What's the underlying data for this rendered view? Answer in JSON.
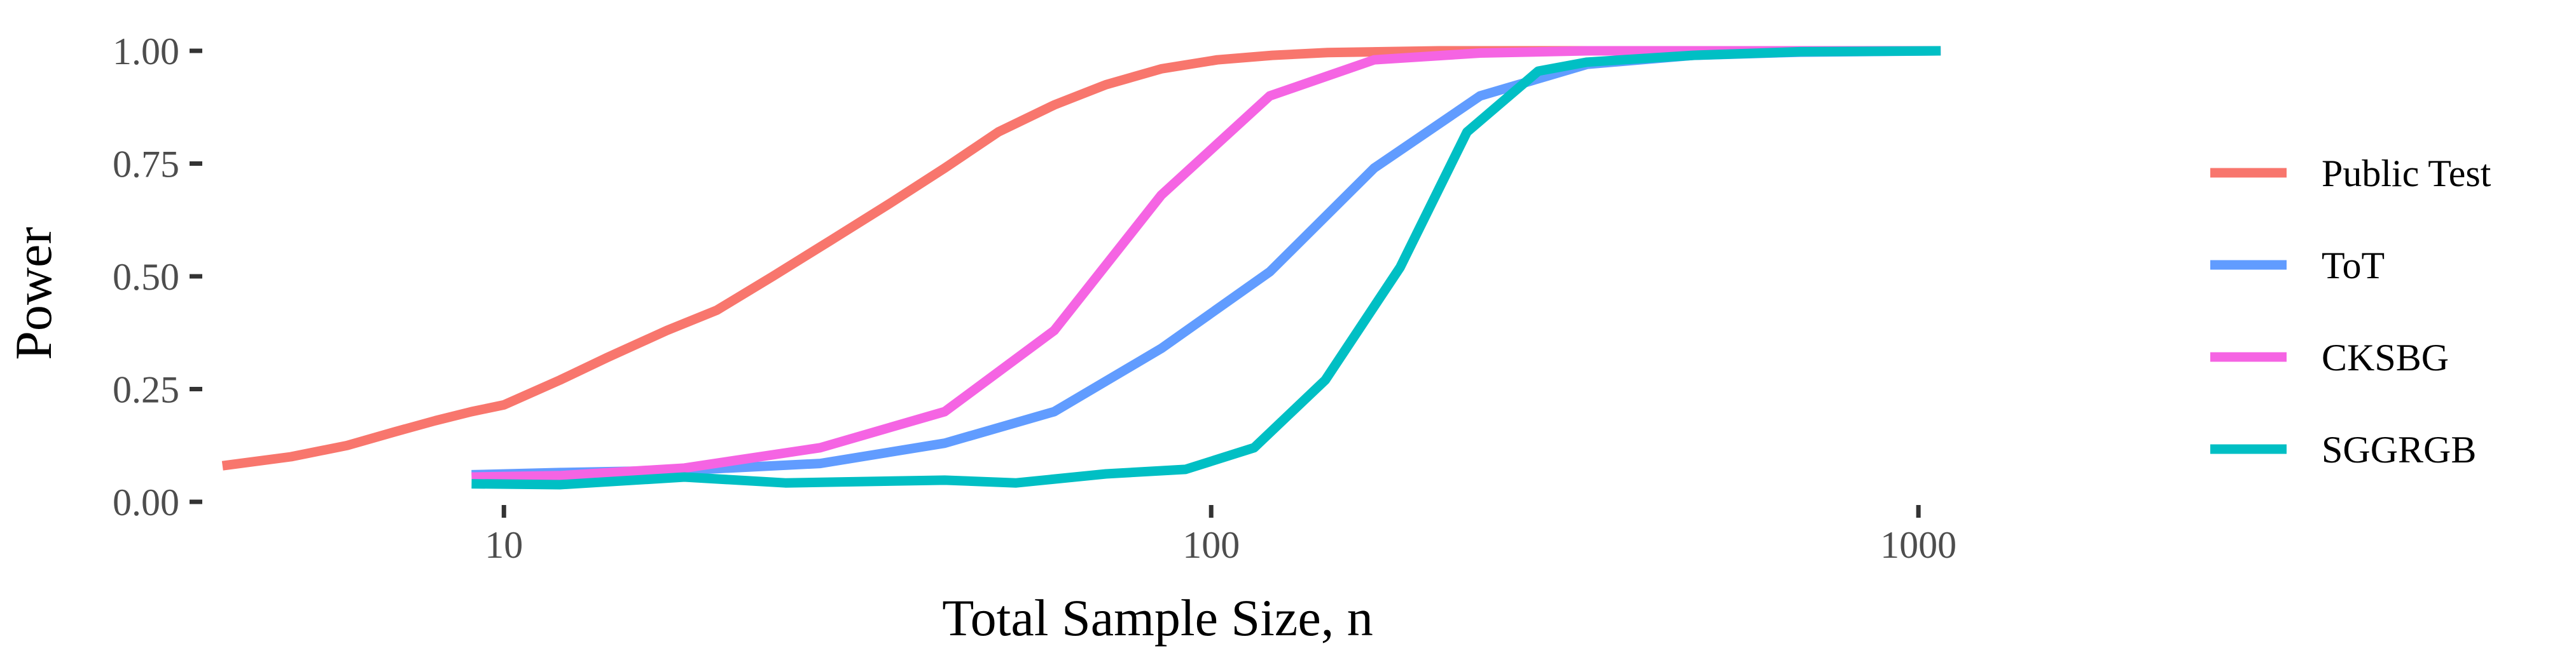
{
  "chart_data": {
    "type": "line",
    "title": "",
    "xlabel": "Total Sample Size, n",
    "ylabel": "Power",
    "x_scale": "log10",
    "xlim": [
      3.8,
      1800
    ],
    "ylim": [
      0,
      1
    ],
    "x_ticks": [
      {
        "value": 10,
        "label": "10"
      },
      {
        "value": 100,
        "label": "100"
      },
      {
        "value": 1000,
        "label": "1000"
      }
    ],
    "y_ticks": [
      {
        "value": 0,
        "label": "0.00"
      },
      {
        "value": 0.25,
        "label": "0.25"
      },
      {
        "value": 0.5,
        "label": "0.50"
      },
      {
        "value": 0.75,
        "label": "0.75"
      },
      {
        "value": 1,
        "label": "1.00"
      }
    ],
    "grid": false,
    "legend_position": "right",
    "series": [
      {
        "name": "Public Test",
        "color": "#F8766D",
        "x": [
          4,
          5,
          6,
          7,
          8,
          9,
          10,
          12,
          14,
          17,
          20,
          24,
          29,
          35,
          42,
          50,
          60,
          71,
          85,
          102,
          122,
          146,
          175,
          210,
          252,
          302,
          362,
          434,
          520,
          624,
          748,
          897,
          1075
        ],
        "y": [
          0.08,
          0.1,
          0.125,
          0.155,
          0.18,
          0.2,
          0.215,
          0.27,
          0.32,
          0.38,
          0.425,
          0.5,
          0.58,
          0.66,
          0.74,
          0.82,
          0.88,
          0.925,
          0.96,
          0.98,
          0.99,
          0.996,
          0.998,
          1,
          1,
          1,
          1,
          1,
          1,
          1,
          1,
          1,
          1
        ]
      },
      {
        "name": "ToT",
        "color": "#619CFF",
        "x": [
          9,
          12,
          18,
          28,
          42,
          60,
          85,
          121,
          170,
          240,
          340,
          480,
          680,
          1075
        ],
        "y": [
          0.06,
          0.065,
          0.07,
          0.085,
          0.13,
          0.2,
          0.34,
          0.51,
          0.74,
          0.9,
          0.97,
          0.99,
          0.997,
          1
        ]
      },
      {
        "name": "CKSBG",
        "color": "#F564E3",
        "x": [
          9,
          12,
          18,
          28,
          42,
          60,
          85,
          121,
          170,
          240,
          340,
          480,
          680,
          1075
        ],
        "y": [
          0.055,
          0.058,
          0.075,
          0.12,
          0.2,
          0.38,
          0.68,
          0.9,
          0.98,
          0.995,
          1,
          1,
          1,
          1
        ]
      },
      {
        "name": "SGGRGB",
        "color": "#00BFC4",
        "x": [
          9,
          12,
          18,
          25,
          42,
          53,
          71,
          92,
          115,
          145,
          185,
          230,
          290,
          340,
          480,
          680,
          1075
        ],
        "y": [
          0.04,
          0.038,
          0.055,
          0.042,
          0.048,
          0.042,
          0.062,
          0.072,
          0.12,
          0.27,
          0.52,
          0.82,
          0.955,
          0.975,
          0.99,
          0.998,
          1
        ]
      }
    ]
  }
}
